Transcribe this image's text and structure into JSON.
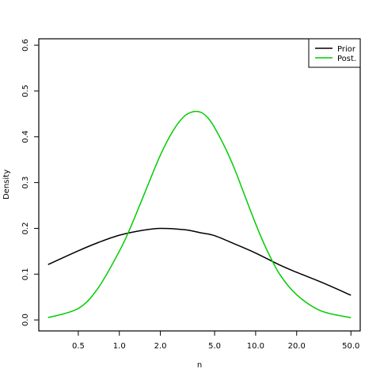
{
  "chart_data": {
    "type": "line",
    "title": "",
    "xlabel": "n",
    "ylabel": "Density",
    "x_scale": "log",
    "xlim": [
      0.3,
      50
    ],
    "ylim": [
      0,
      0.6
    ],
    "x_ticks": [
      0.5,
      1.0,
      2.0,
      5.0,
      10.0,
      20.0,
      50.0
    ],
    "x_tick_labels": [
      "0.5",
      "1.0",
      "2.0",
      "5.0",
      "10.0",
      "20.0",
      "50.0"
    ],
    "y_ticks": [
      0.0,
      0.1,
      0.2,
      0.3,
      0.4,
      0.5,
      0.6
    ],
    "y_tick_labels": [
      "0.0",
      "0.1",
      "0.2",
      "0.3",
      "0.4",
      "0.5",
      "0.6"
    ],
    "grid": false,
    "legend_position": "top-right",
    "series": [
      {
        "name": "Prior",
        "color": "#000000",
        "x": [
          0.3,
          0.5,
          0.7,
          1.0,
          1.5,
          2.0,
          3.0,
          4.0,
          5.0,
          7.0,
          10.0,
          15.0,
          20.0,
          30.0,
          50.0
        ],
        "y": [
          0.121,
          0.151,
          0.169,
          0.185,
          0.196,
          0.2,
          0.197,
          0.19,
          0.184,
          0.166,
          0.146,
          0.12,
          0.104,
          0.083,
          0.054
        ]
      },
      {
        "name": "Post.",
        "color": "#00cc00",
        "x": [
          0.3,
          0.5,
          0.7,
          1.0,
          1.2,
          1.5,
          2.0,
          2.5,
          3.0,
          3.5,
          4.0,
          4.5,
          5.0,
          6.0,
          7.0,
          8.0,
          10.0,
          12.0,
          15.0,
          20.0,
          30.0,
          50.0
        ],
        "y": [
          0.005,
          0.025,
          0.07,
          0.15,
          0.2,
          0.27,
          0.36,
          0.415,
          0.445,
          0.455,
          0.453,
          0.44,
          0.42,
          0.375,
          0.33,
          0.285,
          0.21,
          0.155,
          0.1,
          0.055,
          0.02,
          0.005
        ]
      }
    ]
  }
}
